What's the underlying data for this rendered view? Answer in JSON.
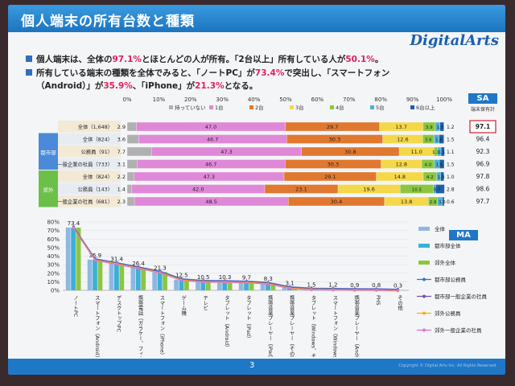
{
  "slide": {
    "title": "個人端末の所有台数と種類",
    "logo": "DigitalArts",
    "page_number": "3",
    "copyright": "Copyright © Digital Arts Inc. All Rights Reserved.",
    "bullets": [
      {
        "parts": [
          "個人端末は、全体の",
          "97.1%",
          "とほとんどの人が所有。「2台以上」所有している人が",
          "50.1%",
          "。"
        ]
      },
      {
        "parts": [
          "所有している端末の種類を全体でみると、「ノートPC」が",
          "73.4%",
          "で突出し、「スマートフォン"
        ]
      },
      {
        "parts": [
          "（Android）」が",
          "35.9%",
          "、「iPhone」が",
          "21.3%",
          "となる。"
        ]
      }
    ],
    "sa_badge": "SA",
    "ma_badge": "MA"
  },
  "chart_data": [
    {
      "type": "bar",
      "orientation": "horizontal-stacked-100",
      "x_ticks": [
        "0%",
        "10%",
        "20%",
        "30%",
        "40%",
        "50%",
        "60%",
        "70%",
        "80%",
        "90%",
        "100%"
      ],
      "xlim": [
        0,
        100
      ],
      "legend": [
        "持っていない",
        "1台",
        "2台",
        "3台",
        "4台",
        "5台",
        "6台以上"
      ],
      "legend_position": "top",
      "right_header": "端末保有計",
      "colors": [
        "#b0b0b0",
        "#e088d8",
        "#e07830",
        "#f5d84a",
        "#8cc63f",
        "#4db0d8",
        "#1e5faa"
      ],
      "groups": [
        {
          "label": "",
          "color": "#ffffff"
        },
        {
          "label": "都市部",
          "color": "#4a8ad8"
        },
        {
          "label": "郊外",
          "color": "#6cc04a"
        }
      ],
      "rows": [
        {
          "group": 0,
          "label": "全体（1,648）",
          "values": [
            2.9,
            47.0,
            29.7,
            13.7,
            3.9,
            1.5,
            1.2
          ],
          "total": "97.1",
          "highlight": true
        },
        {
          "group": 1,
          "label": "全体（824）",
          "values": [
            3.6,
            46.7,
            30.3,
            12.6,
            3.6,
            1.6,
            1.5
          ],
          "total": "96.4"
        },
        {
          "group": 1,
          "label": "公務員（91）",
          "values": [
            7.7,
            47.3,
            30.8,
            11.0,
            1.1,
            1.1,
            1.1
          ],
          "total": "92.3"
        },
        {
          "group": 1,
          "label": "一般企業の社員（733）",
          "values": [
            3.1,
            46.7,
            30.3,
            12.8,
            4.0,
            1.6,
            1.5
          ],
          "total": "96.9"
        },
        {
          "group": 2,
          "label": "全体（824）",
          "values": [
            2.2,
            47.3,
            29.1,
            14.8,
            4.2,
            1.3,
            1.0
          ],
          "total": "97.8"
        },
        {
          "group": 2,
          "label": "公務員（143）",
          "values": [
            1.4,
            42.0,
            23.1,
            19.6,
            10.5,
            0.7,
            2.8
          ],
          "total": "98.6"
        },
        {
          "group": 2,
          "label": "一般企業の社員（681）",
          "values": [
            2.3,
            48.5,
            30.4,
            13.8,
            2.9,
            1.5,
            0.6
          ],
          "total": "97.7"
        }
      ]
    },
    {
      "type": "bar",
      "overlay": "line",
      "ylim": [
        0,
        80
      ],
      "y_ticks": [
        "0%",
        "10%",
        "20%",
        "30%",
        "40%",
        "50%",
        "60%",
        "70%",
        "80%"
      ],
      "categories": [
        "ノートPC",
        "スマートフォン（Android）",
        "デスクトップPC",
        "携帯電話（ガラケー、フィーチャーフォン）",
        "スマートフォン（iPhone）",
        "ゲーム機",
        "テレビ",
        "タブレット（Android）",
        "タブレット（iPad）",
        "携帯音楽プレーヤー（iPod）",
        "携帯音楽プレーヤー（その他）",
        "タブレット（Windows、その他）",
        "スマートフォン（Windows、その他）",
        "携帯音楽プレーヤー（Android）",
        "PHS",
        "その他"
      ],
      "values": [
        73.4,
        35.9,
        31.4,
        26.4,
        21.3,
        12.5,
        10.5,
        10.3,
        9.7,
        8.3,
        3.1,
        1.5,
        1.2,
        0.9,
        0.8,
        0.3
      ],
      "legend_position": "right",
      "series": [
        {
          "name": "全体",
          "color": "#8fb8e0",
          "kind": "bar"
        },
        {
          "name": "都市部全体",
          "color": "#3ab0d8",
          "kind": "bar"
        },
        {
          "name": "郊外全体",
          "color": "#8cc63f",
          "kind": "bar"
        },
        {
          "name": "都市部公務員",
          "color": "#3b6fc8",
          "kind": "line"
        },
        {
          "name": "都市部一般企業の社員",
          "color": "#7a4ea8",
          "kind": "line"
        },
        {
          "name": "郊外公務員",
          "color": "#f0b020",
          "kind": "line"
        },
        {
          "name": "郊外一般企業の社員",
          "color": "#e070d0",
          "kind": "line"
        }
      ]
    }
  ]
}
